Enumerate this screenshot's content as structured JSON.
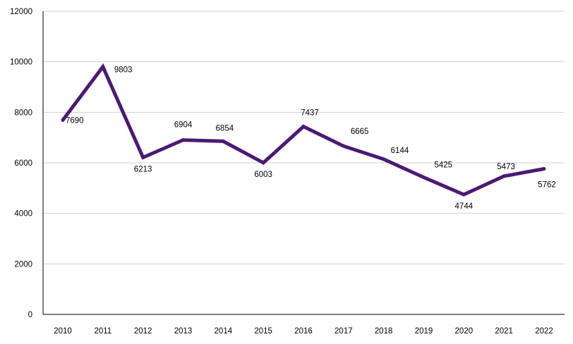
{
  "chart_data": {
    "type": "line",
    "title": "",
    "xlabel": "",
    "ylabel": "",
    "categories": [
      "2010",
      "2011",
      "2012",
      "2013",
      "2014",
      "2015",
      "2016",
      "2017",
      "2018",
      "2019",
      "2020",
      "2021",
      "2022"
    ],
    "series": [
      {
        "values": [
          7690,
          9803,
          6213,
          6904,
          6854,
          6003,
          7437,
          6665,
          6144,
          5425,
          4744,
          5473,
          5762
        ],
        "data_labels": [
          "7690",
          "9803",
          "6213",
          "6904",
          "6854",
          "6003",
          "7437",
          "6665",
          "6144",
          "5425",
          "4744",
          "5473",
          "5762"
        ],
        "color": "#4b1a73"
      }
    ],
    "ylim": [
      0,
      12000
    ],
    "yticks": [
      0,
      2000,
      4000,
      6000,
      8000,
      10000,
      12000
    ],
    "ytick_labels": [
      "0",
      "2000",
      "4000",
      "6000",
      "8000",
      "10000",
      "12000"
    ],
    "grid": true,
    "gridline_color": "#d0d0d0",
    "axis_color": "#000000",
    "legend": "none"
  }
}
